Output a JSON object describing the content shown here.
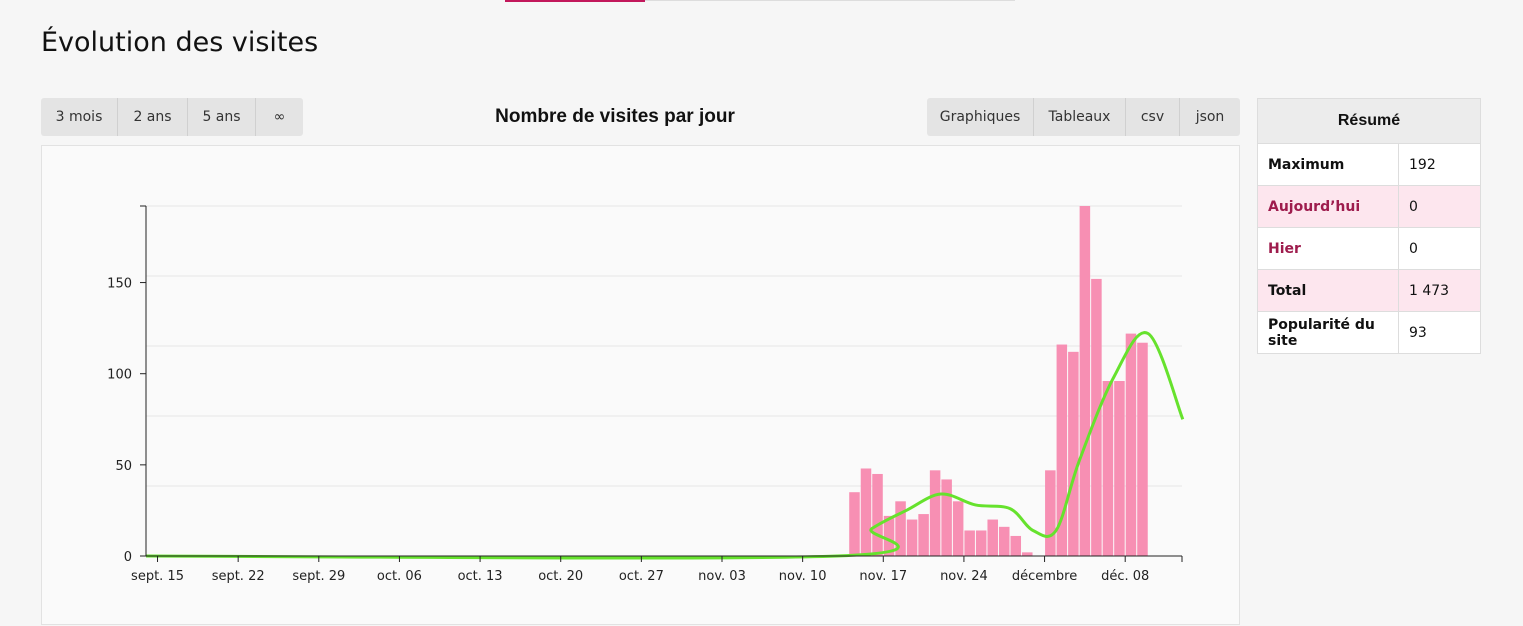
{
  "page": {
    "title": "Évolution des visites"
  },
  "range_buttons": [
    {
      "label": "3 mois",
      "active": true
    },
    {
      "label": "2 ans",
      "active": false
    },
    {
      "label": "5 ans",
      "active": false
    },
    {
      "label": "∞",
      "active": false
    }
  ],
  "view_buttons": [
    {
      "label": "Graphiques",
      "active": true
    },
    {
      "label": "Tableaux",
      "active": false
    },
    {
      "label": "csv",
      "active": false
    },
    {
      "label": "json",
      "active": false
    }
  ],
  "summary": {
    "title": "Résumé",
    "rows": [
      {
        "label": "Maximum",
        "value": "192"
      },
      {
        "label": "Aujourd’hui",
        "value": "0"
      },
      {
        "label": "Hier",
        "value": "0"
      },
      {
        "label": "Total",
        "value": "1 473"
      },
      {
        "label": "Popularité du site",
        "value": "93"
      }
    ]
  },
  "colors": {
    "accent": "#c2134f",
    "bar": "#f78fb3",
    "trend": "#66e22d"
  },
  "chart_data": {
    "type": "bar",
    "title": "Nombre de visites par jour",
    "xlabel": "",
    "ylabel": "",
    "ylim": [
      0,
      192
    ],
    "yticks": [
      0,
      50,
      100,
      150
    ],
    "x_tick_labels": [
      "sept. 15",
      "sept. 22",
      "sept. 29",
      "oct. 06",
      "oct. 13",
      "oct. 20",
      "oct. 27",
      "nov. 03",
      "nov. 10",
      "nov. 17",
      "nov. 24",
      "décembre",
      "déc. 08"
    ],
    "x_tick_day_index": [
      1,
      8,
      15,
      22,
      29,
      36,
      43,
      50,
      57,
      64,
      71,
      78,
      85
    ],
    "series": [
      {
        "values": [
          0,
          0,
          0,
          0,
          0,
          0,
          0,
          0,
          0,
          0,
          0,
          0,
          0,
          0,
          0,
          0,
          0,
          0,
          0,
          0,
          0,
          0,
          0,
          0,
          0,
          0,
          0,
          0,
          0,
          0,
          0,
          0,
          0,
          0,
          0,
          0,
          0,
          0,
          0,
          0,
          0,
          0,
          0,
          0,
          0,
          0,
          0,
          0,
          0,
          0,
          0,
          0,
          0,
          0,
          0,
          0,
          0,
          0,
          0,
          0,
          0,
          35,
          48,
          45,
          22,
          30,
          20,
          23,
          47,
          42,
          30,
          14,
          14,
          20,
          16,
          11,
          2,
          0,
          47,
          116,
          112,
          192,
          152,
          96,
          96,
          122,
          117
        ]
      }
    ],
    "trend_line": {
      "type": "smoothed",
      "x_day_index": [
        60,
        63,
        66,
        69,
        72,
        75,
        77,
        79,
        81,
        84,
        87,
        90
      ],
      "values": [
        0,
        15,
        25,
        34,
        28,
        26,
        14,
        14,
        52,
        98,
        122,
        75
      ]
    }
  }
}
